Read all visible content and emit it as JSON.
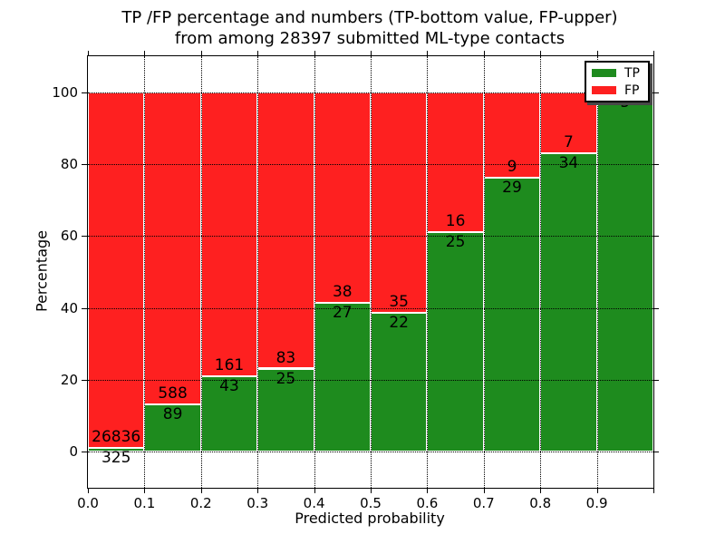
{
  "title": {
    "line1": "TP /FP percentage and numbers (TP-bottom value, FP-upper)",
    "line2": "from among 28397 submitted ML-type contacts"
  },
  "axes": {
    "xlabel": "Predicted probability",
    "ylabel": "Percentage",
    "xticklabels": [
      "0.0",
      "0.1",
      "0.2",
      "0.3",
      "0.4",
      "0.5",
      "0.6",
      "0.7",
      "0.8",
      "0.9"
    ],
    "yticklabels": [
      "0",
      "20",
      "40",
      "60",
      "80",
      "100"
    ],
    "ytick_values": [
      0,
      20,
      40,
      60,
      80,
      100
    ],
    "ylim": [
      -10,
      110
    ],
    "xlim": [
      0,
      1
    ],
    "grid_style": "dotted"
  },
  "legend": {
    "position": "upper right",
    "shadow": true,
    "items": [
      {
        "label": "TP",
        "color": "#1e8b1e"
      },
      {
        "label": "FP",
        "color": "#fe2020"
      }
    ]
  },
  "chart_data": {
    "type": "bar",
    "stacked": true,
    "normalized": "percent of bin total",
    "title": "TP /FP percentage and numbers (TP-bottom value, FP-upper) from among 28397 submitted ML-type contacts",
    "xlabel": "Predicted probability",
    "ylabel": "Percentage",
    "total_contacts": 28397,
    "bins": [
      "0.0-0.1",
      "0.1-0.2",
      "0.2-0.3",
      "0.3-0.4",
      "0.4-0.5",
      "0.5-0.6",
      "0.6-0.7",
      "0.7-0.8",
      "0.8-0.9",
      "0.9-1.0"
    ],
    "bin_starts": [
      0.0,
      0.1,
      0.2,
      0.3,
      0.4,
      0.5,
      0.6,
      0.7,
      0.8,
      0.9
    ],
    "series": [
      {
        "name": "TP",
        "color": "#1e8b1e",
        "counts": [
          325,
          89,
          43,
          25,
          27,
          22,
          25,
          29,
          34,
          5
        ]
      },
      {
        "name": "FP",
        "color": "#fe2020",
        "counts": [
          26836,
          588,
          161,
          83,
          38,
          35,
          16,
          9,
          7,
          0
        ]
      }
    ],
    "tp_percent": [
      1.2,
      13.15,
      21.08,
      23.15,
      41.54,
      38.6,
      60.98,
      76.32,
      82.93,
      100
    ],
    "fp_percent": [
      98.8,
      86.85,
      78.92,
      76.85,
      58.46,
      61.4,
      39.02,
      23.68,
      17.07,
      0
    ],
    "tp_labels": [
      "325",
      "89",
      "43",
      "25",
      "27",
      "22",
      "25",
      "29",
      "34",
      "5"
    ],
    "fp_labels": [
      "26836",
      "588",
      "161",
      "83",
      "38",
      "35",
      "16",
      "9",
      "7",
      ""
    ]
  }
}
